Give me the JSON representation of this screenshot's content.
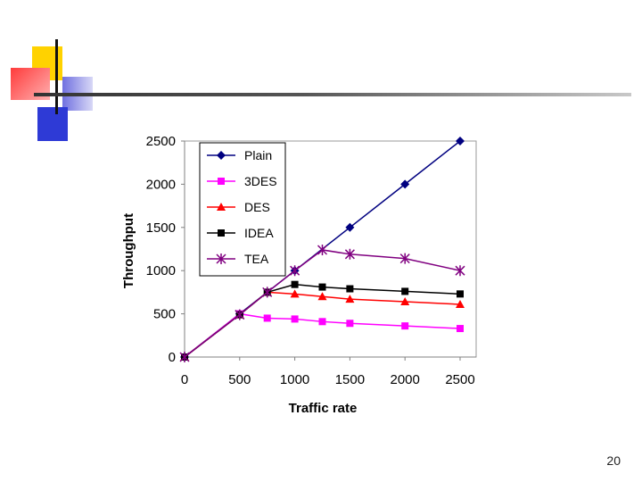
{
  "slide": {
    "number": "20"
  },
  "chart_data": {
    "type": "line",
    "title": "",
    "xlabel": "Traffic rate",
    "ylabel": "Throughput",
    "x": [
      0,
      500,
      750,
      1000,
      1250,
      1500,
      2000,
      2500
    ],
    "xlim": [
      0,
      2500
    ],
    "ylim": [
      0,
      2500
    ],
    "x_ticks": [
      0,
      500,
      1000,
      1500,
      2000,
      2500
    ],
    "y_ticks": [
      0,
      500,
      1000,
      1500,
      2000,
      2500
    ],
    "grid": false,
    "legend_position": "top-left",
    "series": [
      {
        "name": "Plain",
        "color": "#000080",
        "marker": "diamond",
        "values": [
          0,
          500,
          null,
          1000,
          null,
          1500,
          2000,
          2500
        ],
        "x": [
          0,
          500,
          750,
          1000,
          1250,
          1500,
          2000,
          2500
        ]
      },
      {
        "name": "3DES",
        "color": "#ff00ff",
        "marker": "square",
        "values": [
          0,
          500,
          450,
          440,
          410,
          390,
          360,
          330
        ]
      },
      {
        "name": "DES",
        "color": "#ff0000",
        "marker": "triangle",
        "values": [
          0,
          490,
          750,
          730,
          700,
          670,
          640,
          610
        ]
      },
      {
        "name": "IDEA",
        "color": "#000000",
        "marker": "square",
        "values": [
          0,
          490,
          750,
          840,
          810,
          790,
          760,
          730
        ]
      },
      {
        "name": "TEA",
        "color": "#800080",
        "marker": "star",
        "values": [
          0,
          490,
          750,
          1000,
          1240,
          1190,
          1140,
          1000
        ]
      }
    ]
  }
}
